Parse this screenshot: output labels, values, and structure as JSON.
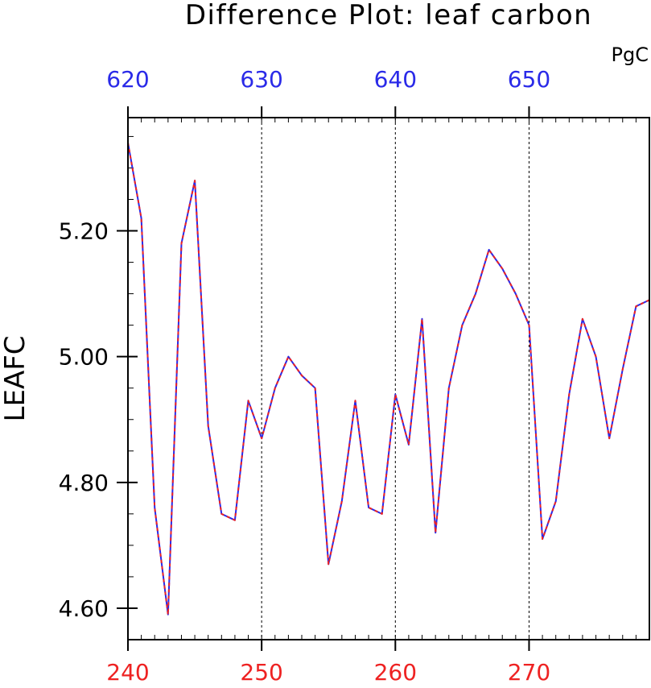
{
  "chart_data": {
    "type": "line",
    "title": "Difference Plot: leaf carbon",
    "units": "PgC",
    "ylabel": "LEAFC",
    "xlabel": "",
    "bottom_axis": {
      "ticks": [
        240,
        250,
        260,
        270
      ],
      "tick_labels": [
        "240",
        "250",
        "260",
        "270"
      ],
      "range": [
        240,
        279
      ],
      "color": "#ee2222"
    },
    "top_axis": {
      "ticks": [
        620,
        630,
        640,
        650
      ],
      "tick_labels": [
        "620",
        "630",
        "640",
        "650"
      ],
      "color": "#2a2ae8"
    },
    "y_axis": {
      "ticks": [
        4.6,
        4.8,
        5.0,
        5.2
      ],
      "tick_labels": [
        "4.60",
        "4.80",
        "5.00",
        "5.20"
      ],
      "minor_step": 0.05,
      "range": [
        4.55,
        5.38
      ]
    },
    "x_minor_step": 1,
    "grid": "dashed vertical lines at labeled x ticks",
    "series": [
      {
        "color": "#2a2ae8",
        "style": "solid",
        "x": [
          240,
          241,
          242,
          243,
          244,
          245,
          246,
          247,
          248,
          249,
          250,
          251,
          252,
          253,
          254,
          255,
          256,
          257,
          258,
          259,
          260,
          261,
          262,
          263,
          264,
          265,
          266,
          267,
          268,
          269,
          270,
          271,
          272,
          273,
          274,
          275,
          276,
          277,
          278,
          279
        ],
        "values": [
          5.34,
          5.22,
          4.76,
          4.59,
          5.18,
          5.28,
          4.89,
          4.75,
          4.74,
          4.93,
          4.87,
          4.95,
          5.0,
          4.97,
          4.95,
          4.67,
          4.77,
          4.93,
          4.76,
          4.75,
          4.94,
          4.86,
          5.06,
          4.72,
          4.95,
          5.05,
          5.1,
          5.17,
          5.14,
          5.1,
          5.05,
          4.71,
          4.77,
          4.94,
          5.06,
          5.0,
          4.87,
          4.98,
          5.08,
          5.09
        ]
      },
      {
        "color": "#ee2222",
        "style": "dashed",
        "x": [
          240,
          241,
          242,
          243,
          244,
          245,
          246,
          247,
          248,
          249,
          250,
          251,
          252,
          253,
          254,
          255,
          256,
          257,
          258,
          259,
          260,
          261,
          262,
          263,
          264,
          265,
          266,
          267,
          268,
          269,
          270,
          271,
          272,
          273,
          274,
          275,
          276,
          277,
          278,
          279
        ],
        "values": [
          5.34,
          5.22,
          4.76,
          4.59,
          5.18,
          5.28,
          4.89,
          4.75,
          4.74,
          4.93,
          4.87,
          4.95,
          5.0,
          4.97,
          4.95,
          4.67,
          4.77,
          4.93,
          4.76,
          4.75,
          4.94,
          4.86,
          5.06,
          4.72,
          4.95,
          5.05,
          5.1,
          5.17,
          5.14,
          5.1,
          5.05,
          4.71,
          4.77,
          4.94,
          5.06,
          5.0,
          4.87,
          4.98,
          5.08,
          5.09
        ]
      }
    ]
  }
}
